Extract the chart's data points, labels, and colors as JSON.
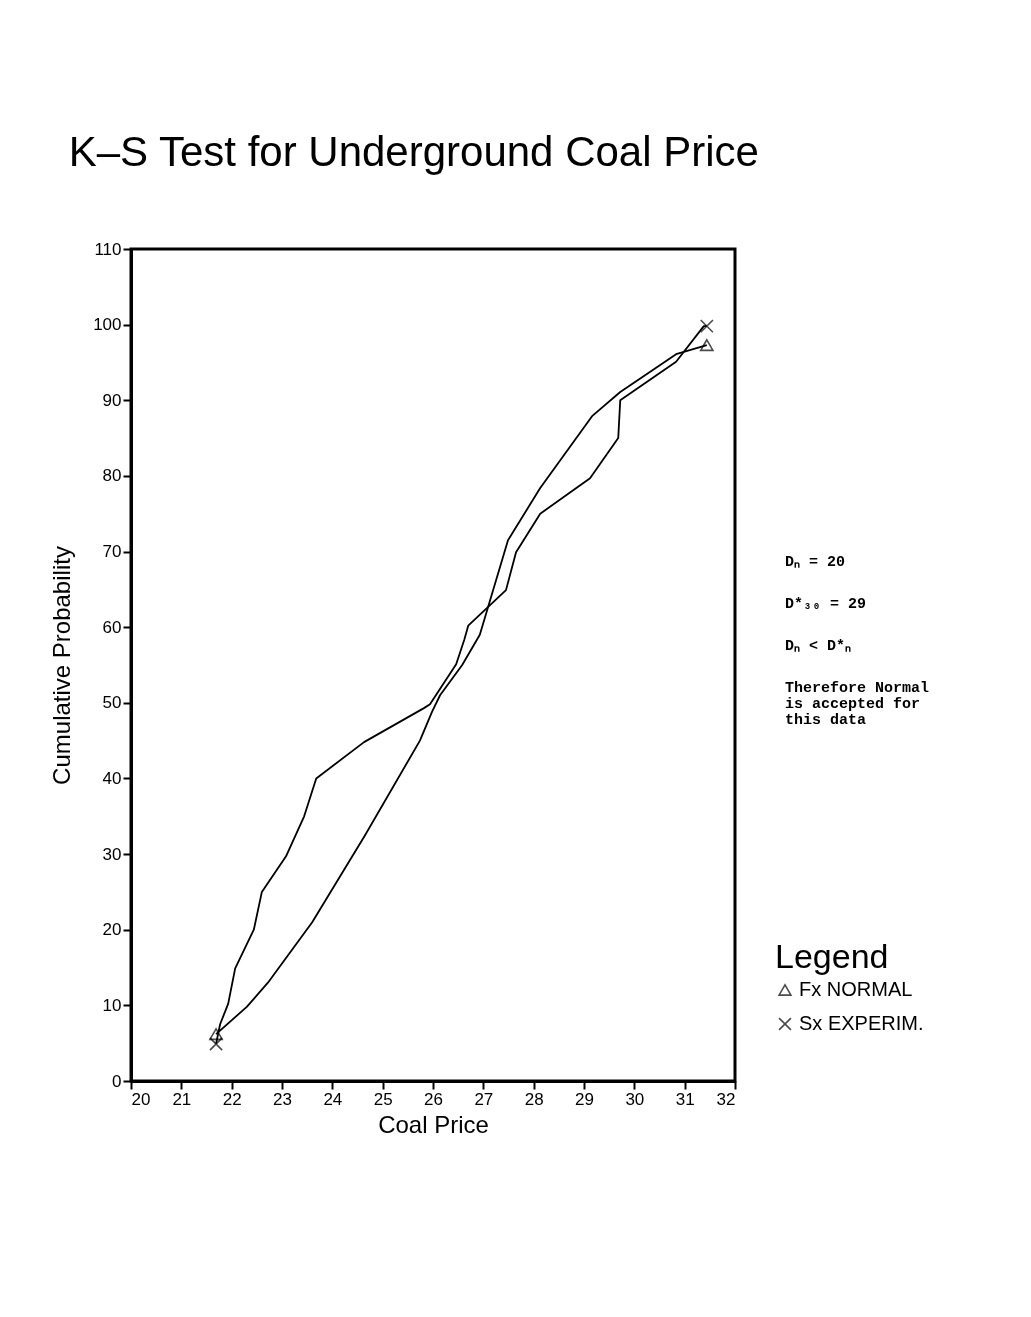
{
  "chart_data": {
    "type": "line",
    "title": "K–S Test for Underground Coal Price",
    "xlabel": "Coal Price",
    "ylabel": "Cumulative Probability",
    "legend_title": "Legend",
    "xlim": [
      20,
      32
    ],
    "xticks": [
      20,
      21,
      22,
      23,
      24,
      25,
      26,
      27,
      28,
      29,
      30,
      31,
      32
    ],
    "ylim": [
      0,
      110
    ],
    "yticks": [
      0,
      10,
      20,
      30,
      40,
      50,
      60,
      70,
      80,
      90,
      100,
      110
    ],
    "legend": "bottom right",
    "line_style": "solid",
    "series": [
      {
        "color": "#000000",
        "x": [
          21.69,
          22.3,
          22.72,
          23.6,
          24.65,
          25.74,
          25.98,
          26.14,
          26.58,
          26.93,
          27.49,
          28.13,
          29.16,
          29.72,
          30.83,
          31.44
        ],
        "values": [
          6.2,
          9.8,
          13,
          21,
          32.5,
          45,
          48.8,
          51,
          55,
          59,
          71.5,
          78.4,
          87.9,
          91.1,
          96.1,
          97.3
        ]
      },
      {
        "color": "#000000",
        "x": [
          21.69,
          21.77,
          21.93,
          22.07,
          22.44,
          22.6,
          23.08,
          23.44,
          23.68,
          24.63,
          25.82,
          25.94,
          26.46,
          26.62,
          26.7,
          27.45,
          27.65,
          28.13,
          29.12,
          29.68,
          29.72,
          30.83,
          31.38,
          31.44
        ],
        "values": [
          4.9,
          7.5,
          10.2,
          14.9,
          20,
          25,
          29.7,
          35,
          40,
          44.8,
          49.3,
          49.8,
          55.1,
          58.3,
          60.2,
          64.9,
          69.9,
          75,
          79.7,
          85,
          90,
          95.1,
          99.8,
          99.8
        ]
      },
      {
        "type": "scatter",
        "name": "Fx NORMAL",
        "color": "#000000",
        "marker": "triangle",
        "x": [
          21.69,
          31.44
        ],
        "values": [
          6.2,
          97.3
        ]
      },
      {
        "type": "scatter",
        "name": "Sx EXPERIM.",
        "color": "#000000",
        "marker": "cross",
        "x": [
          21.69,
          31.44
        ],
        "values": [
          4.9,
          99.8
        ]
      }
    ],
    "annotations": [
      "Dₙ = 20",
      "D*₃₀ = 29",
      "Dₙ < D*ₙ",
      "Therefore Normal\nis accepted for\nthis data"
    ]
  }
}
